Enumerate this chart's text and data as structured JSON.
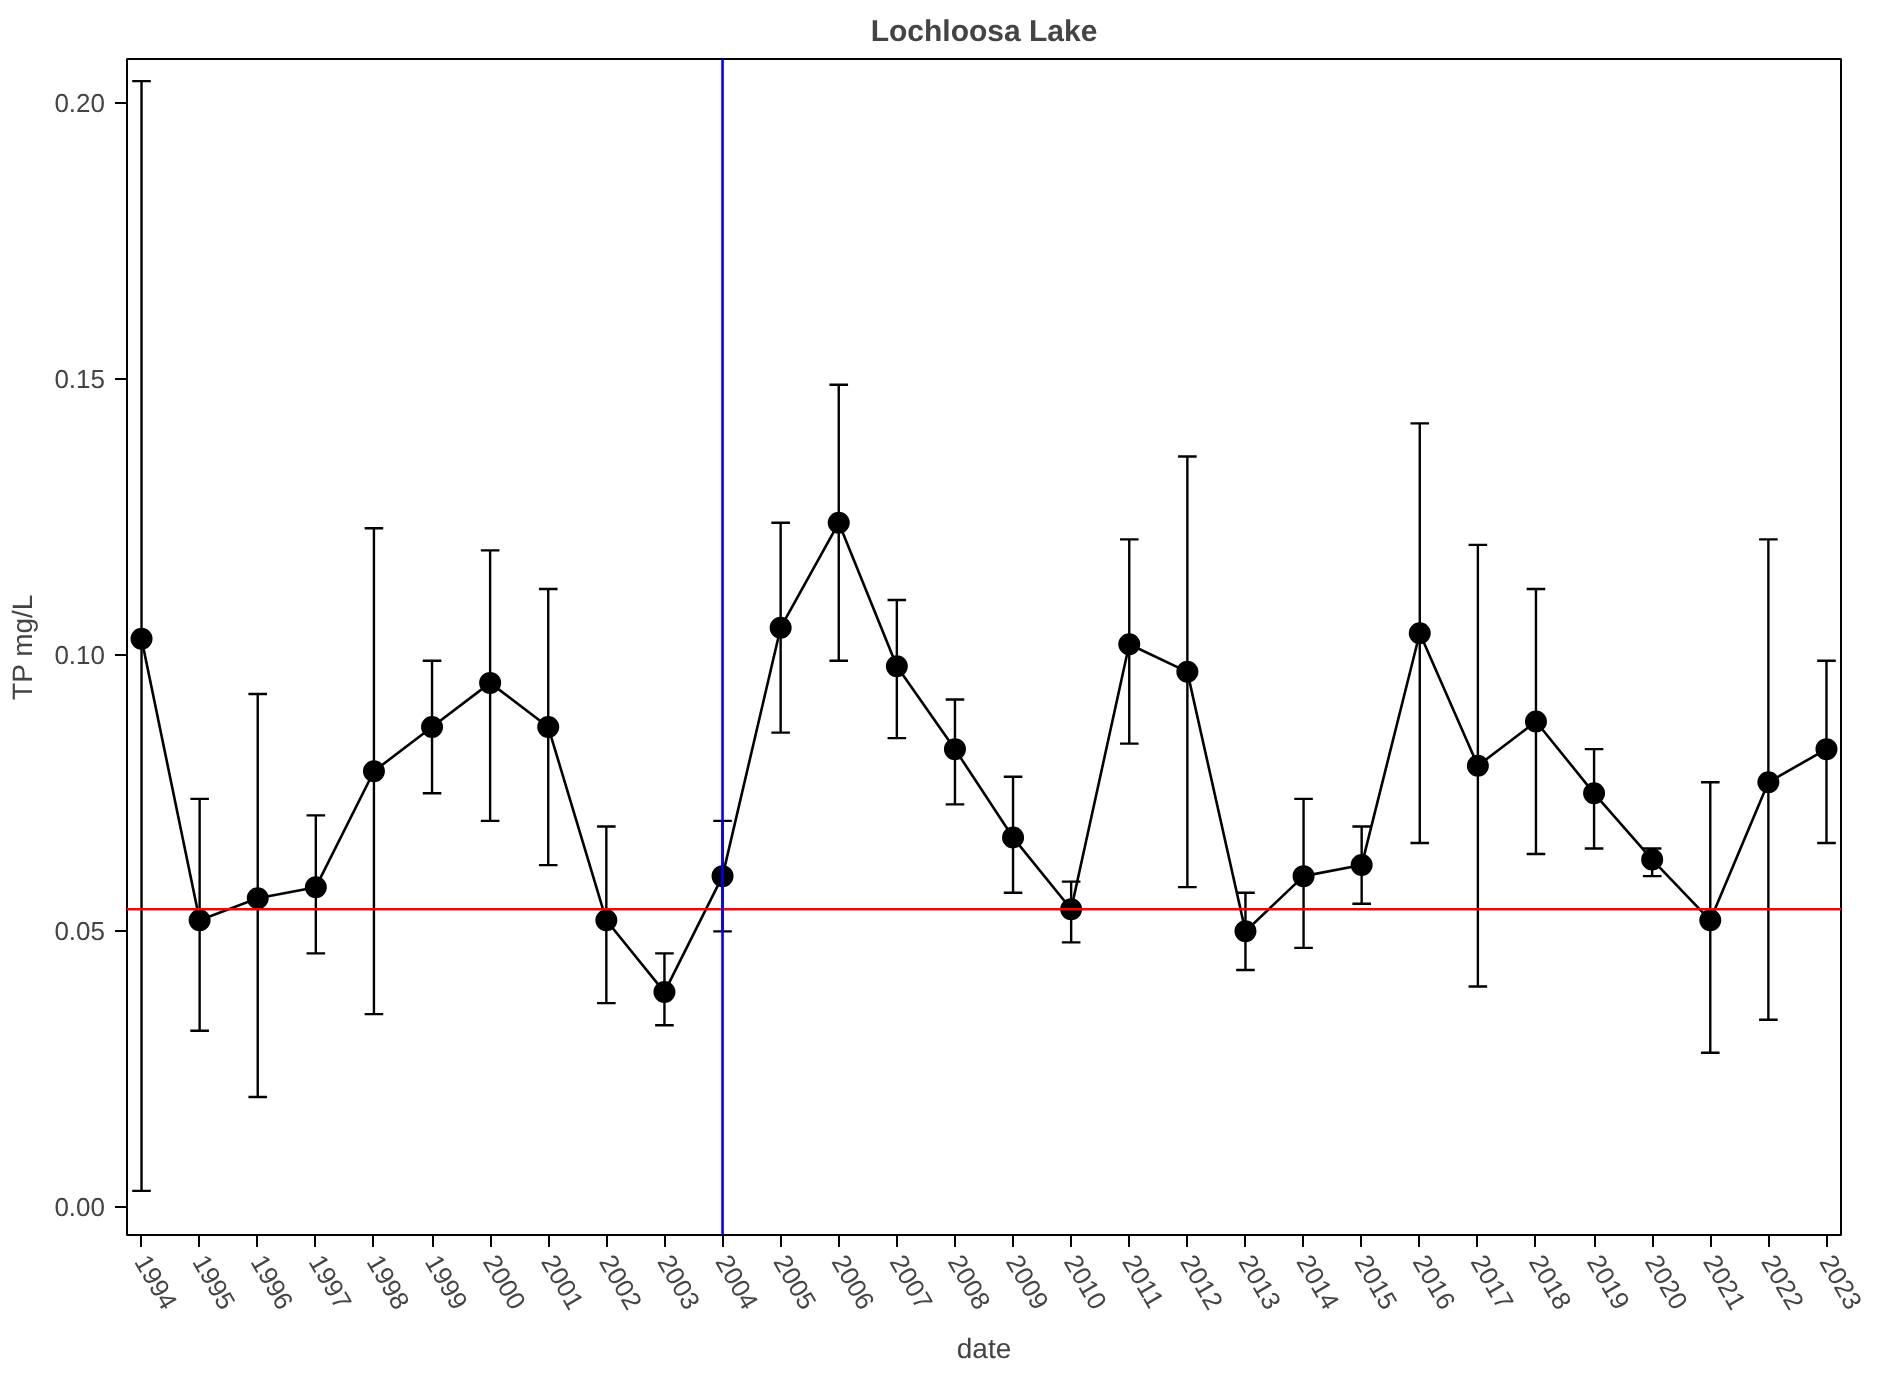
{
  "chart_data": {
    "type": "line",
    "title": "Lochloosa Lake",
    "xlabel": "date",
    "ylabel": "TP mg/L",
    "categories": [
      "1994",
      "1995",
      "1996",
      "1997",
      "1998",
      "1999",
      "2000",
      "2001",
      "2002",
      "2003",
      "2004",
      "2005",
      "2006",
      "2007",
      "2008",
      "2009",
      "2010",
      "2011",
      "2012",
      "2013",
      "2014",
      "2015",
      "2016",
      "2017",
      "2018",
      "2019",
      "2020",
      "2021",
      "2022",
      "2023"
    ],
    "series": [
      {
        "color": "#000000",
        "values": [
          0.103,
          0.052,
          0.056,
          0.058,
          0.079,
          0.087,
          0.095,
          0.087,
          0.052,
          0.039,
          0.06,
          0.105,
          0.124,
          0.098,
          0.083,
          0.067,
          0.054,
          0.102,
          0.097,
          0.05,
          0.06,
          0.062,
          0.104,
          0.08,
          0.088,
          0.075,
          0.063,
          0.052,
          0.077,
          0.083
        ],
        "errors": [
          [
            0.003,
            0.204
          ],
          [
            0.032,
            0.074
          ],
          [
            0.02,
            0.093
          ],
          [
            0.046,
            0.071
          ],
          [
            0.035,
            0.123
          ],
          [
            0.075,
            0.099
          ],
          [
            0.07,
            0.119
          ],
          [
            0.062,
            0.112
          ],
          [
            0.037,
            0.069
          ],
          [
            0.033,
            0.046
          ],
          [
            0.05,
            0.07
          ],
          [
            0.086,
            0.124
          ],
          [
            0.099,
            0.149
          ],
          [
            0.085,
            0.11
          ],
          [
            0.073,
            0.092
          ],
          [
            0.057,
            0.078
          ],
          [
            0.048,
            0.059
          ],
          [
            0.084,
            0.121
          ],
          [
            0.058,
            0.136
          ],
          [
            0.043,
            0.057
          ],
          [
            0.047,
            0.074
          ],
          [
            0.055,
            0.069
          ],
          [
            0.066,
            0.142
          ],
          [
            0.04,
            0.12
          ],
          [
            0.064,
            0.112
          ],
          [
            0.065,
            0.083
          ],
          [
            0.06,
            0.065
          ],
          [
            0.028,
            0.077
          ],
          [
            0.034,
            0.121
          ],
          [
            0.066,
            0.099
          ]
        ]
      }
    ],
    "ylim": [
      -0.005,
      0.208
    ],
    "yticks": [
      {
        "value": 0,
        "label": "0.00"
      },
      {
        "value": 0.05,
        "label": "0.05"
      },
      {
        "value": 0.1,
        "label": "0.10"
      },
      {
        "value": 0.15,
        "label": "0.15"
      },
      {
        "value": 0.2,
        "label": "0.20"
      }
    ],
    "ref_lines": [
      {
        "axis": "y",
        "value": 0.054,
        "color": "#ff0000"
      },
      {
        "axis": "x",
        "value": "2004",
        "color": "#0000ff"
      }
    ],
    "marker": "circle",
    "line_style": "solid",
    "grid": false
  }
}
